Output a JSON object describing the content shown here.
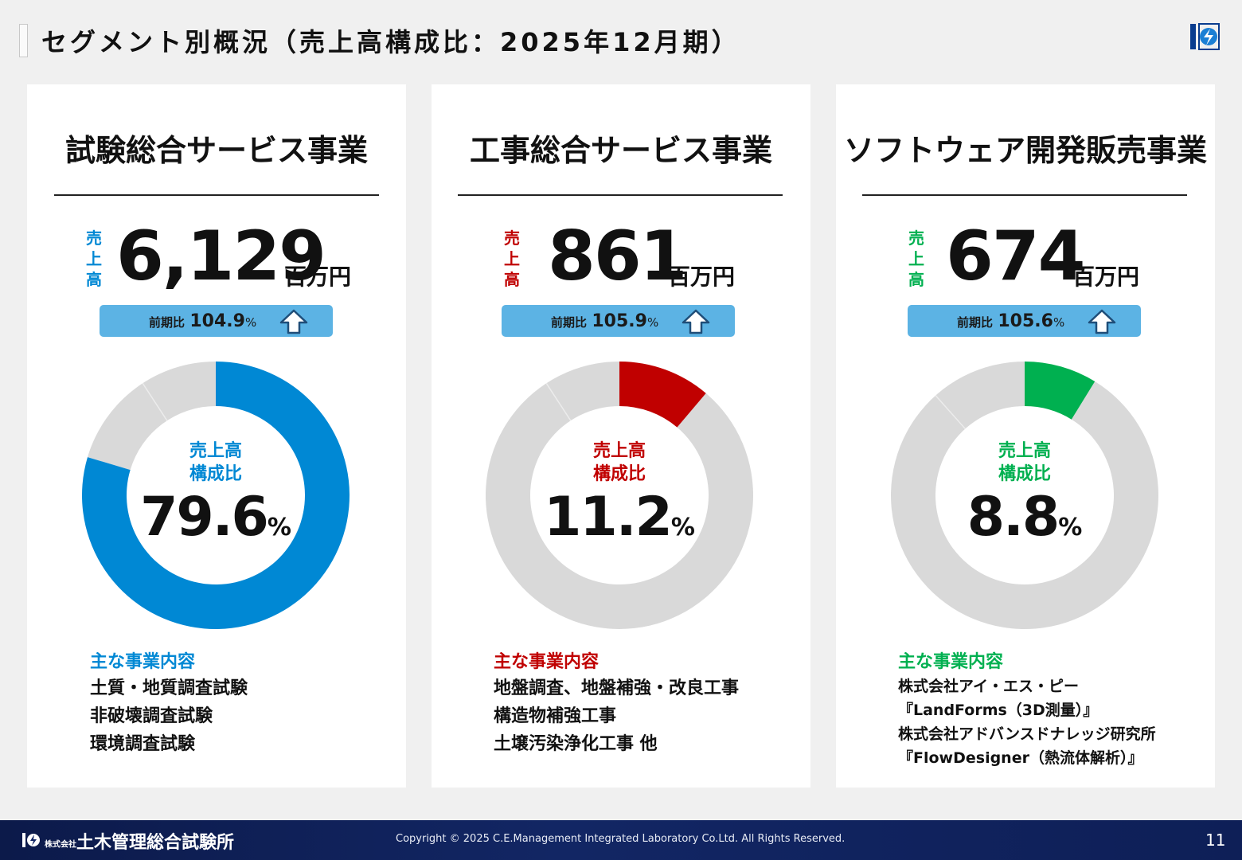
{
  "header": {
    "title": "セグメント別概況（売上高構成比：2025年12月期）",
    "logo_icon": "company-logo-icon"
  },
  "segments": [
    {
      "name": "試験総合サービス事業",
      "sales_label": [
        "売",
        "上",
        "高"
      ],
      "sales_value": "6,129",
      "sales_unit": "百万円",
      "yoy_prefix": "前期比",
      "yoy_value": "104.9",
      "yoy_unit": "%",
      "yoy_icon": "up-arrow-icon",
      "ratio_label_1": "売上高",
      "ratio_label_2": "構成比",
      "ratio_value": "79.6",
      "ratio_unit": "%",
      "ratio": 79.6,
      "accent": "#0088d4",
      "biz_heading": "主な事業内容",
      "biz_items": [
        "土質・地質調査試験",
        "非破壊調査試験",
        "環境調査試験"
      ]
    },
    {
      "name": "工事総合サービス事業",
      "sales_label": [
        "売",
        "上",
        "高"
      ],
      "sales_value": "861",
      "sales_unit": "百万円",
      "yoy_prefix": "前期比",
      "yoy_value": "105.9",
      "yoy_unit": "%",
      "yoy_icon": "up-arrow-icon",
      "ratio_label_1": "売上高",
      "ratio_label_2": "構成比",
      "ratio_value": "11.2",
      "ratio_unit": "%",
      "ratio": 11.2,
      "accent": "#c00000",
      "biz_heading": "主な事業内容",
      "biz_items": [
        "地盤調査、地盤補強・改良工事",
        "構造物補強工事",
        "土壌汚染浄化工事 他"
      ]
    },
    {
      "name": "ソフトウェア開発販売事業",
      "sales_label": [
        "売",
        "上",
        "高"
      ],
      "sales_value": "674",
      "sales_unit": "百万円",
      "yoy_prefix": "前期比",
      "yoy_value": "105.6",
      "yoy_unit": "%",
      "yoy_icon": "up-arrow-icon",
      "ratio_label_1": "売上高",
      "ratio_label_2": "構成比",
      "ratio_value": "8.8",
      "ratio_unit": "%",
      "ratio": 8.8,
      "accent": "#00b050",
      "biz_heading": "主な事業内容",
      "biz_items": [
        "株式会社アイ・エス・ピー",
        "『LandForms（3D測量）』",
        "株式会社アドバンスドナレッジ研究所",
        "『FlowDesigner（熱流体解析）』"
      ]
    }
  ],
  "donut_colors": {
    "rest": "#d9d9d9",
    "gap": "#ffffff"
  },
  "footer": {
    "company": "土木管理総合試験所",
    "company_prefix": "株式会社",
    "copyright": "Copyright © 2025 C.E.Management Integrated Laboratory Co.Ltd. All Rights Reserved.",
    "page_number": "11"
  }
}
